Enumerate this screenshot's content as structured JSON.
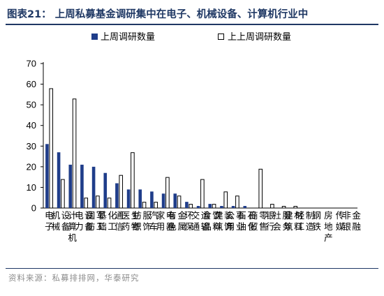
{
  "header": {
    "title": "图表21： 上周私募基金调研集中在电子、机械设备、计算机行业中"
  },
  "footer": {
    "source": "资料来源：私募排排网，华泰研究"
  },
  "colors": {
    "accent": "#1f3864",
    "series_primary": "#1f3d8a",
    "series_secondary": "#ffffff"
  },
  "chart_data": {
    "type": "bar",
    "categories": [
      "电子",
      "机械设备",
      "计算机",
      "电力设备",
      "国防军工",
      "基础化工",
      "通信",
      "医药生物",
      "纺织服饰",
      "汽车",
      "家用电器",
      "有色金属",
      "环保",
      "交通运输",
      "食品饮料",
      "建筑装饰",
      "公用事业",
      "石油石化",
      "商贸零售",
      "银行",
      "社会服务",
      "建筑材料",
      "轻工制造",
      "钢铁",
      "房地产",
      "传媒",
      "非银金融"
    ],
    "series": [
      {
        "name": "上周调研数量",
        "values": [
          31,
          27,
          21,
          21,
          20,
          17,
          12,
          9,
          9,
          8,
          7,
          7,
          3,
          1,
          2,
          1,
          1,
          1,
          0,
          0,
          0,
          0,
          0,
          0,
          0,
          0,
          0
        ]
      },
      {
        "name": "上上周调研数量",
        "values": [
          58,
          14,
          53,
          5,
          6,
          5,
          16,
          27,
          3,
          3,
          15,
          6,
          2,
          14,
          2,
          8,
          6,
          0,
          19,
          2,
          1,
          1,
          0,
          0,
          0,
          0,
          0
        ]
      }
    ],
    "ylim": [
      0,
      70
    ],
    "yticks": [
      0,
      10,
      20,
      30,
      40,
      50,
      60,
      70
    ],
    "legend_position": "top",
    "grid": false
  }
}
